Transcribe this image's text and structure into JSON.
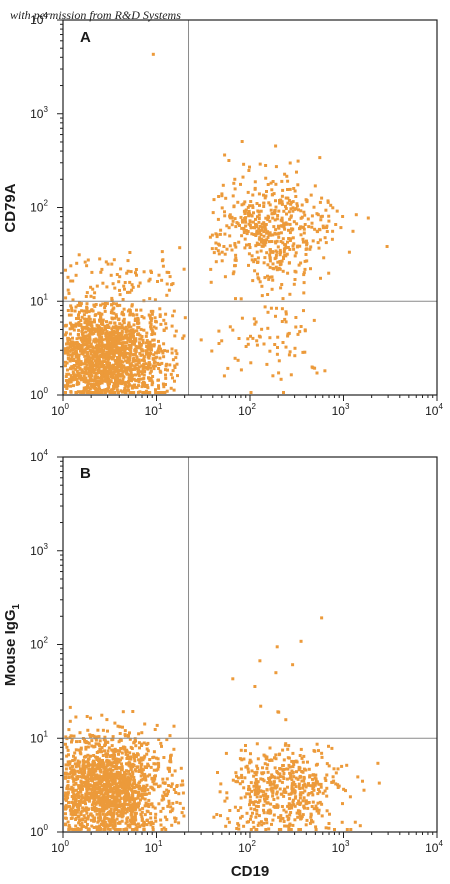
{
  "watermark": "with permission from R&D Systems",
  "colors": {
    "dots": "#EC9A3A",
    "axes": "#222222",
    "gates": "#8a8a8a"
  },
  "chart_data": [
    {
      "type": "scatter",
      "panel": "A",
      "xlabel": "CD19",
      "ylabel": "CD79A",
      "xscale": "log",
      "yscale": "log",
      "xlim": [
        1,
        10000
      ],
      "ylim": [
        1,
        10000
      ],
      "x_ticks": [
        {
          "base": "10",
          "exp": "0"
        },
        {
          "base": "10",
          "exp": "1"
        },
        {
          "base": "10",
          "exp": "2"
        },
        {
          "base": "10",
          "exp": "3"
        },
        {
          "base": "10",
          "exp": "4"
        }
      ],
      "y_ticks": [
        {
          "base": "10",
          "exp": "0"
        },
        {
          "base": "10",
          "exp": "1"
        },
        {
          "base": "10",
          "exp": "2"
        },
        {
          "base": "10",
          "exp": "3"
        },
        {
          "base": "10",
          "exp": "4"
        }
      ],
      "quadrant_gate": {
        "x": 22,
        "y": 10
      },
      "populations": [
        {
          "quadrant": "lower-left",
          "x_range": [
            1,
            20
          ],
          "y_range": [
            1,
            10
          ],
          "center": [
            3,
            3
          ],
          "relative_density": "very high"
        },
        {
          "quadrant": "upper-right",
          "x_range": [
            40,
            2000
          ],
          "y_range": [
            10,
            700
          ],
          "center": [
            180,
            60
          ],
          "relative_density": "high"
        },
        {
          "quadrant": "lower-right",
          "x_range": [
            30,
            600
          ],
          "y_range": [
            1,
            10
          ],
          "center": [
            200,
            4
          ],
          "relative_density": "low"
        },
        {
          "quadrant": "upper-left",
          "x_range": [
            1,
            20
          ],
          "y_range": [
            10,
            100
          ],
          "center": [
            4,
            15
          ],
          "relative_density": "low"
        }
      ]
    },
    {
      "type": "scatter",
      "panel": "B",
      "xlabel": "CD19",
      "ylabel": "Mouse IgG",
      "ylabel_subscript": "1",
      "xscale": "log",
      "yscale": "log",
      "xlim": [
        1,
        10000
      ],
      "ylim": [
        1,
        10000
      ],
      "x_ticks": [
        {
          "base": "10",
          "exp": "0"
        },
        {
          "base": "10",
          "exp": "1"
        },
        {
          "base": "10",
          "exp": "2"
        },
        {
          "base": "10",
          "exp": "3"
        },
        {
          "base": "10",
          "exp": "4"
        }
      ],
      "y_ticks": [
        {
          "base": "10",
          "exp": "0"
        },
        {
          "base": "10",
          "exp": "1"
        },
        {
          "base": "10",
          "exp": "2"
        },
        {
          "base": "10",
          "exp": "3"
        },
        {
          "base": "10",
          "exp": "4"
        }
      ],
      "quadrant_gate": {
        "x": 22,
        "y": 10
      },
      "populations": [
        {
          "quadrant": "lower-left",
          "x_range": [
            1,
            20
          ],
          "y_range": [
            1,
            25
          ],
          "center": [
            3,
            3
          ],
          "relative_density": "very high"
        },
        {
          "quadrant": "lower-right",
          "x_range": [
            40,
            3000
          ],
          "y_range": [
            1,
            10
          ],
          "center": [
            250,
            3
          ],
          "relative_density": "high"
        },
        {
          "quadrant": "upper-right",
          "x_range": [
            50,
            600
          ],
          "y_range": [
            10,
            200
          ],
          "center": [
            200,
            50
          ],
          "relative_density": "very low"
        }
      ]
    }
  ]
}
